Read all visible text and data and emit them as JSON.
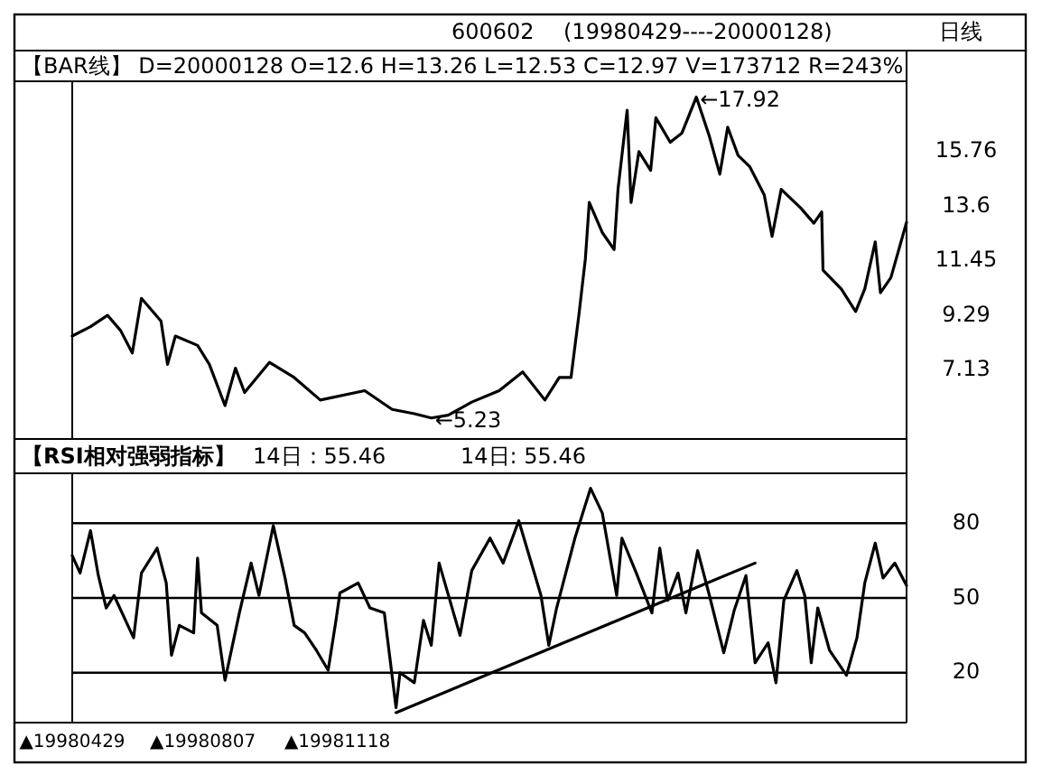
{
  "chart_data": [
    {
      "type": "line",
      "subtitle": "【BAR线】 D=20000128 O=12.6 H=13.26 L=12.53 C=12.97 V=173712 R=243%",
      "annotations": [
        "600602",
        "(19980429----20000128)",
        "日线",
        {
          "text": "←17.92",
          "x": "1999-08-20",
          "y": 17.92
        },
        {
          "text": "←5.23",
          "x": "1999-01-29",
          "y": 5.23
        }
      ],
      "xlim": [
        "1998-04-29",
        "2000-01-28"
      ],
      "ylim": [
        4.4,
        18.4
      ],
      "yticks": [
        7.13,
        9.29,
        11.45,
        13.6,
        15.76
      ],
      "tick_labels": "y",
      "grid": false,
      "series": [
        {
          "color": "#000000",
          "x": [
            "1998-04-29",
            "1998-05-13",
            "1998-05-26",
            "1998-06-05",
            "1998-06-14",
            "1998-06-21",
            "1998-07-06",
            "1998-07-11",
            "1998-07-17",
            "1998-08-03",
            "1998-08-12",
            "1998-08-24",
            "1998-09-01",
            "1998-09-08",
            "1998-09-27",
            "1998-10-16",
            "1998-11-05",
            "1998-12-09",
            "1998-12-30",
            "1999-01-16",
            "1999-01-29",
            "1999-02-11",
            "1999-03-01",
            "1999-03-22",
            "1999-04-09",
            "1999-04-26",
            "1999-05-07",
            "1999-05-16",
            "1999-05-22",
            "1999-05-27",
            "1999-05-30",
            "1999-06-09",
            "1999-06-18",
            "1999-06-21",
            "1999-06-28",
            "1999-07-01",
            "1999-07-07",
            "1999-07-16",
            "1999-07-20",
            "1999-07-31",
            "1999-08-09",
            "1999-08-20",
            "1999-08-30",
            "1999-09-07",
            "1999-09-13",
            "1999-09-21",
            "1999-09-30",
            "1999-10-11",
            "1999-10-17",
            "1999-10-24",
            "1999-11-08",
            "1999-11-18",
            "1999-11-24",
            "1999-11-25",
            "1999-12-09",
            "1999-12-20",
            "1999-12-27",
            "2000-01-04",
            "2000-01-08",
            "2000-01-16",
            "2000-01-28"
          ],
          "values": [
            8.47,
            8.84,
            9.29,
            8.69,
            7.8,
            9.96,
            9.06,
            7.35,
            8.47,
            8.1,
            7.35,
            5.72,
            7.2,
            6.24,
            7.43,
            6.83,
            5.94,
            6.31,
            5.57,
            5.4,
            5.23,
            5.34,
            5.86,
            6.31,
            7.05,
            5.94,
            6.83,
            6.83,
            9.29,
            11.52,
            13.75,
            12.56,
            11.89,
            14.27,
            17.4,
            13.75,
            15.76,
            15.02,
            17.1,
            16.13,
            16.5,
            17.92,
            16.36,
            14.87,
            16.73,
            15.61,
            15.16,
            14.05,
            12.41,
            14.27,
            13.53,
            12.93,
            13.38,
            11.07,
            10.33,
            9.44,
            10.33,
            12.19,
            10.18,
            10.78,
            12.97
          ]
        }
      ]
    },
    {
      "type": "line",
      "title": "【RSI相对强弱指标】",
      "annotations": [
        "14日：55.46",
        "14日: 55.46"
      ],
      "xlim": [
        "1998-04-29",
        "2000-01-28"
      ],
      "xticks": [
        {
          "value": "1998-04-29",
          "label": "▲19980429"
        },
        {
          "value": "1998-08-07",
          "label": "▲19980807"
        },
        {
          "value": "1998-11-18",
          "label": "▲19981118"
        }
      ],
      "ylim": [
        0,
        100
      ],
      "yticks": [
        20,
        50,
        80
      ],
      "grid": "y",
      "series": [
        {
          "color": "#000000",
          "x": [
            "1998-04-29",
            "1998-05-05",
            "1998-05-13",
            "1998-05-19",
            "1998-05-25",
            "1998-05-31",
            "1998-06-15",
            "1998-06-21",
            "1998-07-03",
            "1998-07-10",
            "1998-07-14",
            "1998-07-20",
            "1998-07-31",
            "1998-08-03",
            "1998-08-06",
            "1998-08-18",
            "1998-08-24",
            "1998-09-04",
            "1998-09-13",
            "1998-09-19",
            "1998-09-30",
            "1998-10-09",
            "1998-10-16",
            "1998-10-24",
            "1998-11-02",
            "1998-11-11",
            "1998-11-17",
            "1998-11-20",
            "1998-12-04",
            "1998-12-13",
            "1998-12-24",
            "1999-01-02",
            "1999-01-05",
            "1999-01-16",
            "1999-01-23",
            "1999-01-29",
            "1999-02-04",
            "1999-02-20",
            "1999-03-01",
            "1999-03-15",
            "1999-03-25",
            "1999-04-06",
            "1999-04-23",
            "1999-04-29",
            "1999-05-05",
            "1999-05-19",
            "1999-05-31",
            "1999-06-09",
            "1999-06-20",
            "1999-06-24",
            "1999-07-05",
            "1999-07-17",
            "1999-07-23",
            "1999-07-29",
            "1999-08-06",
            "1999-08-12",
            "1999-08-21",
            "1999-08-30",
            "1999-09-10",
            "1999-09-18",
            "1999-09-27",
            "1999-10-04",
            "1999-10-14",
            "1999-10-20",
            "1999-10-26",
            "1999-11-05",
            "1999-11-11",
            "1999-11-16",
            "1999-11-21",
            "1999-11-30",
            "1999-12-13",
            "1999-12-21",
            "1999-12-27",
            "2000-01-04",
            "2000-01-10",
            "2000-01-19",
            "2000-01-28"
          ],
          "values": [
            67,
            60,
            77,
            59,
            46,
            51,
            34,
            60,
            70,
            56,
            27,
            39,
            36,
            66,
            44,
            39,
            17,
            44,
            64,
            51,
            79,
            58,
            39,
            36,
            29,
            21,
            41,
            52,
            56,
            46,
            44,
            6,
            20,
            16,
            41,
            31,
            64,
            35,
            61,
            74,
            64,
            81,
            51,
            31,
            46,
            74,
            94,
            84,
            51,
            74,
            60,
            44,
            70,
            49,
            60,
            44,
            69,
            51,
            28,
            45,
            59,
            24,
            32,
            16,
            49,
            61,
            51,
            24,
            46,
            29,
            19,
            34,
            56,
            72,
            58,
            64,
            55
          ]
        },
        {
          "type": "line",
          "color": "#000000",
          "x": [
            "1999-01-02",
            "1999-10-04"
          ],
          "values": [
            4,
            64
          ]
        }
      ]
    }
  ]
}
